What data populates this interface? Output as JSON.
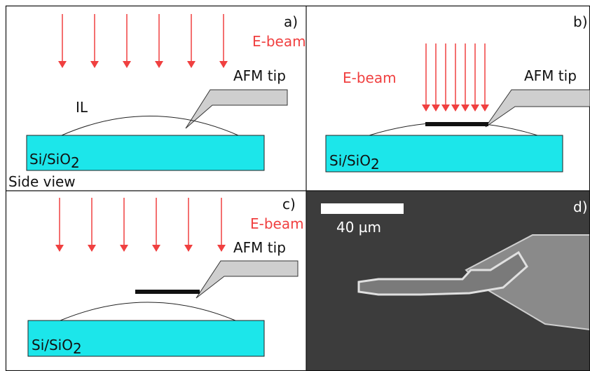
{
  "panels": [
    {
      "label": "a)",
      "beam": "E-beam",
      "tip": "AFM tip",
      "layer": "IL",
      "substrate": {
        "main": "Si/SiO",
        "sub": "2"
      },
      "note": "Side view"
    },
    {
      "label": "b)",
      "beam": "E-beam",
      "tip": "AFM tip",
      "substrate": {
        "main": "Si/SiO",
        "sub": "2"
      }
    },
    {
      "label": "c)",
      "beam": "E-beam",
      "tip": "AFM tip",
      "substrate": {
        "main": "Si/SiO",
        "sub": "2"
      }
    },
    {
      "label": "d)",
      "scale": "40 µm"
    }
  ]
}
